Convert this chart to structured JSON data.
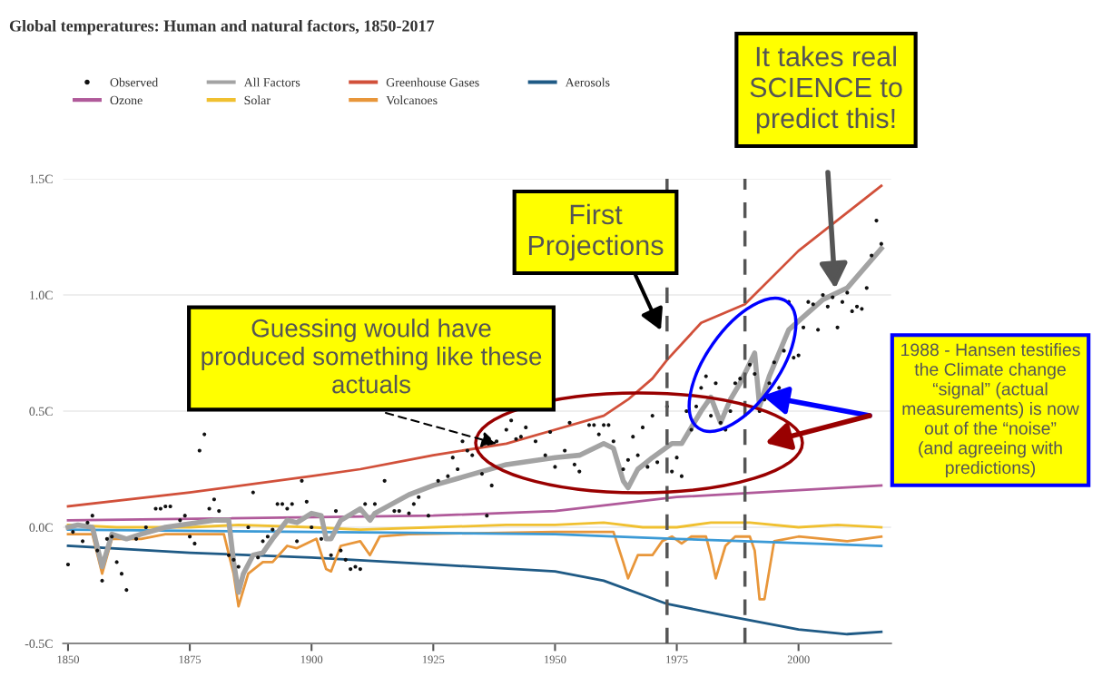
{
  "chart_data": {
    "type": "line",
    "title": "Global temperatures: Human and natural factors, 1850-2017",
    "xlim": [
      1849,
      2019
    ],
    "xticks": [
      1850,
      1875,
      1900,
      1925,
      1950,
      1975,
      2000
    ],
    "ylim": [
      -0.5,
      1.5
    ],
    "yticks": [
      {
        "value": -0.5,
        "label": "-0.5C"
      },
      {
        "value": 0.0,
        "label": "0.0C"
      },
      {
        "value": 0.5,
        "label": "0.5C"
      },
      {
        "value": 1.0,
        "label": "1.0C"
      },
      {
        "value": 1.5,
        "label": "1.5C"
      }
    ],
    "grid": "y",
    "legend": "top",
    "series": [
      {
        "name": "Observed",
        "type": "scatter",
        "color": "#111111",
        "x": [
          1850,
          1851,
          1853,
          1854,
          1855,
          1856,
          1857,
          1858,
          1859,
          1860,
          1861,
          1862,
          1864,
          1866,
          1868,
          1869,
          1870,
          1871,
          1873,
          1874,
          1875,
          1876,
          1877,
          1878,
          1879,
          1880,
          1881,
          1883,
          1884,
          1885,
          1887,
          1888,
          1889,
          1890,
          1891,
          1892,
          1893,
          1894,
          1895,
          1896,
          1897,
          1898,
          1899,
          1900,
          1902,
          1904,
          1905,
          1906,
          1907,
          1908,
          1909,
          1910,
          1911,
          1913,
          1915,
          1917,
          1918,
          1920,
          1921,
          1922,
          1924,
          1926,
          1928,
          1929,
          1930,
          1931,
          1932,
          1933,
          1935,
          1936,
          1937,
          1938,
          1940,
          1941,
          1942,
          1943,
          1944,
          1946,
          1948,
          1949,
          1950,
          1952,
          1953,
          1954,
          1955,
          1957,
          1958,
          1959,
          1960,
          1961,
          1962,
          1964,
          1965,
          1966,
          1967,
          1968,
          1969,
          1970,
          1971,
          1973,
          1974,
          1975,
          1976,
          1977,
          1978,
          1979,
          1980,
          1981,
          1982,
          1983,
          1984,
          1985,
          1986,
          1987,
          1988,
          1990,
          1991,
          1992,
          1993,
          1994,
          1995,
          1996,
          1997,
          1998,
          1999,
          2000,
          2001,
          2002,
          2003,
          2004,
          2005,
          2006,
          2007,
          2008,
          2009,
          2010,
          2011,
          2012,
          2013,
          2014,
          2015,
          2016,
          2017
        ],
        "values": [
          -0.16,
          -0.02,
          -0.06,
          0.02,
          0.05,
          -0.1,
          -0.23,
          -0.05,
          -0.04,
          -0.15,
          -0.2,
          -0.27,
          -0.05,
          0.0,
          0.08,
          0.08,
          0.09,
          0.09,
          0.03,
          0.05,
          -0.04,
          -0.07,
          0.33,
          0.4,
          0.08,
          0.12,
          0.07,
          -0.12,
          -0.14,
          -0.17,
          0.0,
          0.15,
          -0.13,
          -0.06,
          -0.04,
          -0.01,
          0.1,
          0.1,
          0.08,
          0.1,
          -0.06,
          0.2,
          0.11,
          0.0,
          -0.05,
          -0.12,
          0.07,
          -0.1,
          -0.14,
          -0.18,
          -0.17,
          -0.18,
          0.1,
          0.1,
          0.2,
          0.07,
          0.07,
          0.06,
          0.1,
          0.13,
          0.05,
          0.2,
          0.22,
          0.3,
          0.25,
          0.37,
          0.33,
          0.31,
          0.23,
          0.05,
          0.18,
          0.37,
          0.42,
          0.46,
          0.38,
          0.39,
          0.43,
          0.37,
          0.31,
          0.41,
          0.26,
          0.33,
          0.45,
          0.27,
          0.24,
          0.44,
          0.44,
          0.4,
          0.44,
          0.44,
          0.37,
          0.25,
          0.29,
          0.39,
          0.31,
          0.43,
          0.26,
          0.48,
          0.28,
          0.52,
          0.24,
          0.3,
          0.22,
          0.5,
          0.42,
          0.52,
          0.6,
          0.65,
          0.48,
          0.62,
          0.45,
          0.42,
          0.5,
          0.62,
          0.64,
          0.7,
          0.66,
          0.5,
          0.55,
          0.62,
          0.71,
          0.6,
          0.76,
          0.97,
          0.73,
          0.74,
          0.86,
          0.97,
          0.96,
          0.85,
          1.0,
          0.95,
          0.99,
          0.86,
          0.97,
          1.01,
          0.93,
          0.95,
          0.94,
          1.03,
          1.17,
          1.32,
          1.22
        ]
      },
      {
        "name": "All Factors",
        "color": "#a3a3a3",
        "x": [
          1850,
          1852,
          1855,
          1857,
          1859,
          1862,
          1865,
          1870,
          1880,
          1883,
          1884,
          1885,
          1886,
          1888,
          1890,
          1892,
          1895,
          1897,
          1900,
          1902,
          1903,
          1904,
          1906,
          1910,
          1912,
          1913,
          1920,
          1925,
          1930,
          1940,
          1950,
          1955,
          1960,
          1962,
          1964,
          1965,
          1967,
          1970,
          1974,
          1976,
          1980,
          1982,
          1984,
          1986,
          1988,
          1991,
          1992,
          1994,
          1998,
          2005,
          2010,
          2017
        ],
        "values": [
          0.0,
          0.01,
          0.0,
          -0.17,
          -0.03,
          -0.05,
          -0.03,
          0.0,
          0.03,
          0.03,
          -0.15,
          -0.28,
          -0.2,
          -0.12,
          -0.11,
          -0.05,
          0.03,
          0.02,
          0.06,
          0.05,
          -0.05,
          -0.05,
          0.03,
          0.08,
          0.03,
          0.06,
          0.14,
          0.18,
          0.21,
          0.27,
          0.3,
          0.31,
          0.36,
          0.34,
          0.2,
          0.17,
          0.25,
          0.3,
          0.36,
          0.36,
          0.5,
          0.56,
          0.45,
          0.55,
          0.62,
          0.75,
          0.52,
          0.65,
          0.85,
          0.98,
          1.03,
          1.2
        ]
      },
      {
        "name": "Greenhouse Gases",
        "color": "#d1503a",
        "x": [
          1850,
          1875,
          1900,
          1910,
          1925,
          1940,
          1950,
          1960,
          1965,
          1970,
          1973,
          1980,
          1989,
          2000,
          2017
        ],
        "values": [
          0.09,
          0.15,
          0.22,
          0.25,
          0.31,
          0.36,
          0.42,
          0.48,
          0.55,
          0.64,
          0.72,
          0.88,
          0.96,
          1.19,
          1.47
        ]
      },
      {
        "name": "Aerosols",
        "color": "#1f5a85",
        "x": [
          1850,
          1875,
          1900,
          1925,
          1950,
          1960,
          1973,
          1985,
          2000,
          2010,
          2017
        ],
        "values": [
          -0.08,
          -0.11,
          -0.13,
          -0.16,
          -0.19,
          -0.23,
          -0.33,
          -0.38,
          -0.44,
          -0.46,
          -0.45
        ]
      },
      {
        "name": "Ozone",
        "color": "#b05a9a",
        "x": [
          1850,
          1925,
          1950,
          1975,
          2000,
          2017
        ],
        "values": [
          0.03,
          0.05,
          0.07,
          0.13,
          0.16,
          0.18
        ]
      },
      {
        "name": "Solar",
        "color": "#f0c030",
        "x": [
          1850,
          1860,
          1875,
          1885,
          1900,
          1910,
          1925,
          1940,
          1950,
          1960,
          1968,
          1975,
          1982,
          1990,
          2000,
          2008,
          2017
        ],
        "values": [
          0.01,
          0.0,
          0.0,
          0.01,
          0.0,
          -0.01,
          0.0,
          0.01,
          0.01,
          0.02,
          0.0,
          0.0,
          0.02,
          0.02,
          0.0,
          0.01,
          0.0
        ]
      },
      {
        "name": "Volcanoes",
        "color": "#e8963a",
        "x": [
          1850,
          1855,
          1857,
          1859,
          1865,
          1870,
          1882,
          1884,
          1885,
          1887,
          1890,
          1892,
          1895,
          1897,
          1900,
          1901,
          1903,
          1904,
          1906,
          1910,
          1912,
          1914,
          1920,
          1950,
          1962,
          1964,
          1965,
          1967,
          1970,
          1972,
          1974,
          1976,
          1978,
          1981,
          1982,
          1983,
          1985,
          1987,
          1990,
          1991,
          1992,
          1993,
          1995,
          2000,
          2010,
          2017
        ],
        "values": [
          -0.03,
          -0.03,
          -0.2,
          -0.05,
          -0.05,
          -0.03,
          -0.03,
          -0.2,
          -0.34,
          -0.2,
          -0.15,
          -0.15,
          -0.08,
          -0.09,
          -0.06,
          -0.05,
          -0.18,
          -0.19,
          -0.08,
          -0.06,
          -0.12,
          -0.04,
          -0.03,
          -0.02,
          -0.02,
          -0.15,
          -0.22,
          -0.12,
          -0.12,
          -0.06,
          -0.04,
          -0.07,
          -0.04,
          -0.04,
          -0.12,
          -0.22,
          -0.08,
          -0.04,
          -0.04,
          -0.1,
          -0.31,
          -0.31,
          -0.06,
          -0.04,
          -0.06,
          -0.04
        ]
      },
      {
        "color": "#3b9ad6",
        "x": [
          1850,
          1900,
          1950,
          1975,
          2017
        ],
        "values": [
          -0.01,
          -0.02,
          -0.03,
          -0.05,
          -0.08
        ]
      }
    ],
    "ref_lines": [
      {
        "axis": "x",
        "value": 1973,
        "color": "#555555",
        "line_style": "dashed"
      },
      {
        "axis": "x",
        "value": 1989,
        "color": "#555555",
        "line_style": "dashed"
      }
    ],
    "annotations": [
      "It takes real\nSCIENCE to\npredict this!",
      "First\nProjections",
      {
        "text": "Guessing would have\nproduced something like these\nactuals",
        "x": 1938,
        "y": 0.36
      },
      "1988 - Hansen testifies\nthe Climate change\n“signal” (actual\nmeasurements) is now\nout of the “noise”\n(and agreeing with\npredictions)"
    ]
  }
}
